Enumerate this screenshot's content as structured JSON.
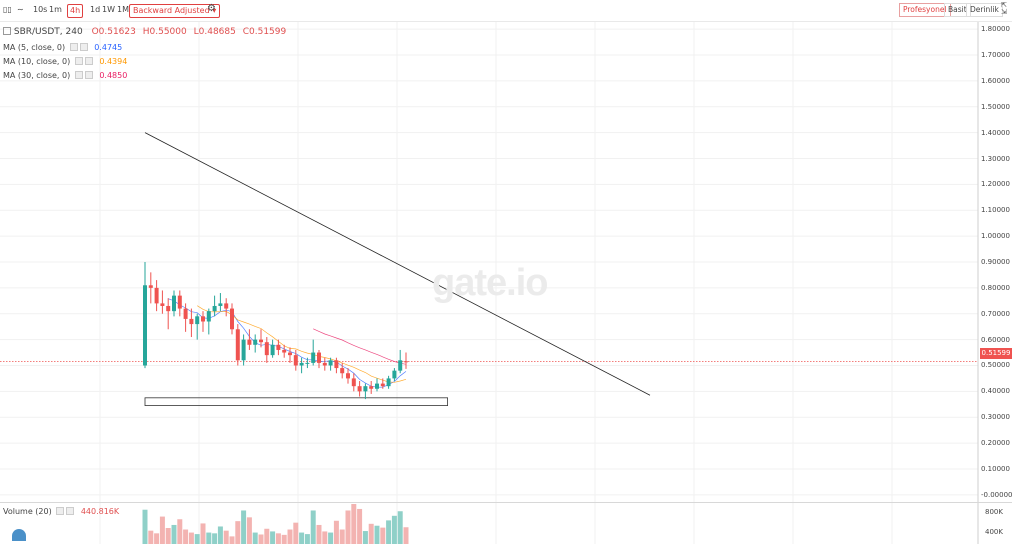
{
  "toolbar": {
    "intervals": [
      "10s",
      "1m",
      "4h",
      "1d",
      "1W",
      "1M"
    ],
    "active_interval": "4h",
    "price_mode": "Backward Adjusted",
    "view_modes": [
      "Profesyonel",
      "Basit",
      "Derinlik"
    ],
    "active_view": "Profesyonel"
  },
  "symbol": {
    "name": "SBR/USDT, 240",
    "open": "O0.51623",
    "high": "H0.55000",
    "low": "L0.48685",
    "close": "C0.51599"
  },
  "indicators": [
    {
      "label": "MA (5, close, 0)",
      "value": "0.4745",
      "color": "#2962ff"
    },
    {
      "label": "MA (10, close, 0)",
      "value": "0.4394",
      "color": "#ff9800"
    },
    {
      "label": "MA (30, close, 0)",
      "value": "0.4850",
      "color": "#e91e63"
    }
  ],
  "volume_legend": {
    "label": "Volume (20)",
    "value": "440.816K"
  },
  "watermark": "gate.io",
  "price_axis": [
    "1.80000",
    "1.70000",
    "1.60000",
    "1.50000",
    "1.40000",
    "1.30000",
    "1.20000",
    "1.10000",
    "1.00000",
    "0.90000",
    "0.80000",
    "0.70000",
    "0.60000",
    "0.50000",
    "0.40000",
    "0.30000",
    "0.20000",
    "0.10000",
    "-0.00000"
  ],
  "last_price": "0.51599",
  "volume_axis": [
    "800K",
    "400K"
  ],
  "colors": {
    "up": "#26a69a",
    "down": "#ef5350",
    "up_vol": "#8fd0c8",
    "down_vol": "#f3b3b1",
    "grid": "#f1f1f1"
  },
  "chart_data": {
    "type": "candlestick",
    "symbol": "SBR/USDT",
    "ylim": [
      -0.02,
      1.82
    ],
    "candles": [
      {
        "o": 0.5,
        "h": 0.9,
        "l": 0.49,
        "c": 0.81
      },
      {
        "o": 0.81,
        "h": 0.86,
        "l": 0.74,
        "c": 0.8
      },
      {
        "o": 0.8,
        "h": 0.83,
        "l": 0.71,
        "c": 0.74
      },
      {
        "o": 0.74,
        "h": 0.79,
        "l": 0.7,
        "c": 0.73
      },
      {
        "o": 0.73,
        "h": 0.76,
        "l": 0.64,
        "c": 0.71
      },
      {
        "o": 0.71,
        "h": 0.79,
        "l": 0.69,
        "c": 0.77
      },
      {
        "o": 0.77,
        "h": 0.79,
        "l": 0.69,
        "c": 0.72
      },
      {
        "o": 0.72,
        "h": 0.74,
        "l": 0.63,
        "c": 0.68
      },
      {
        "o": 0.68,
        "h": 0.72,
        "l": 0.61,
        "c": 0.66
      },
      {
        "o": 0.66,
        "h": 0.7,
        "l": 0.6,
        "c": 0.69
      },
      {
        "o": 0.69,
        "h": 0.71,
        "l": 0.63,
        "c": 0.67
      },
      {
        "o": 0.67,
        "h": 0.72,
        "l": 0.62,
        "c": 0.71
      },
      {
        "o": 0.71,
        "h": 0.77,
        "l": 0.69,
        "c": 0.73
      },
      {
        "o": 0.73,
        "h": 0.78,
        "l": 0.71,
        "c": 0.74
      },
      {
        "o": 0.74,
        "h": 0.76,
        "l": 0.69,
        "c": 0.72
      },
      {
        "o": 0.72,
        "h": 0.74,
        "l": 0.62,
        "c": 0.64
      },
      {
        "o": 0.64,
        "h": 0.66,
        "l": 0.5,
        "c": 0.52
      },
      {
        "o": 0.52,
        "h": 0.62,
        "l": 0.5,
        "c": 0.6
      },
      {
        "o": 0.6,
        "h": 0.64,
        "l": 0.56,
        "c": 0.58
      },
      {
        "o": 0.58,
        "h": 0.62,
        "l": 0.55,
        "c": 0.6
      },
      {
        "o": 0.6,
        "h": 0.64,
        "l": 0.57,
        "c": 0.59
      },
      {
        "o": 0.59,
        "h": 0.61,
        "l": 0.51,
        "c": 0.54
      },
      {
        "o": 0.54,
        "h": 0.6,
        "l": 0.53,
        "c": 0.58
      },
      {
        "o": 0.58,
        "h": 0.6,
        "l": 0.54,
        "c": 0.56
      },
      {
        "o": 0.56,
        "h": 0.58,
        "l": 0.53,
        "c": 0.55
      },
      {
        "o": 0.55,
        "h": 0.57,
        "l": 0.51,
        "c": 0.54
      },
      {
        "o": 0.54,
        "h": 0.56,
        "l": 0.48,
        "c": 0.5
      },
      {
        "o": 0.5,
        "h": 0.53,
        "l": 0.47,
        "c": 0.51
      },
      {
        "o": 0.51,
        "h": 0.53,
        "l": 0.49,
        "c": 0.51
      },
      {
        "o": 0.51,
        "h": 0.6,
        "l": 0.5,
        "c": 0.55
      },
      {
        "o": 0.55,
        "h": 0.56,
        "l": 0.49,
        "c": 0.51
      },
      {
        "o": 0.51,
        "h": 0.53,
        "l": 0.48,
        "c": 0.5
      },
      {
        "o": 0.5,
        "h": 0.53,
        "l": 0.48,
        "c": 0.52
      },
      {
        "o": 0.52,
        "h": 0.53,
        "l": 0.47,
        "c": 0.49
      },
      {
        "o": 0.49,
        "h": 0.51,
        "l": 0.45,
        "c": 0.47
      },
      {
        "o": 0.47,
        "h": 0.49,
        "l": 0.43,
        "c": 0.45
      },
      {
        "o": 0.45,
        "h": 0.47,
        "l": 0.4,
        "c": 0.42
      },
      {
        "o": 0.42,
        "h": 0.44,
        "l": 0.38,
        "c": 0.4
      },
      {
        "o": 0.4,
        "h": 0.43,
        "l": 0.37,
        "c": 0.42
      },
      {
        "o": 0.42,
        "h": 0.44,
        "l": 0.39,
        "c": 0.41
      },
      {
        "o": 0.41,
        "h": 0.45,
        "l": 0.4,
        "c": 0.43
      },
      {
        "o": 0.43,
        "h": 0.45,
        "l": 0.41,
        "c": 0.42
      },
      {
        "o": 0.42,
        "h": 0.46,
        "l": 0.41,
        "c": 0.45
      },
      {
        "o": 0.45,
        "h": 0.49,
        "l": 0.44,
        "c": 0.48
      },
      {
        "o": 0.48,
        "h": 0.56,
        "l": 0.47,
        "c": 0.52
      },
      {
        "o": 0.51623,
        "h": 0.55,
        "l": 0.48685,
        "c": 0.51599
      }
    ],
    "volumes": [
      900,
      350,
      280,
      720,
      420,
      500,
      650,
      380,
      300,
      260,
      540,
      300,
      280,
      460,
      350,
      200,
      600,
      880,
      700,
      300,
      250,
      400,
      330,
      280,
      240,
      380,
      560,
      300,
      260,
      880,
      500,
      330,
      300,
      610,
      380,
      880,
      1050,
      920,
      340,
      530,
      480,
      430,
      620,
      740,
      860,
      440
    ],
    "annotations": {
      "trendline": {
        "from_index": 0,
        "from_price": 1.4,
        "to_index": 47,
        "to_price": 0.385
      },
      "support_box": {
        "from_index": 0,
        "to_index": 47,
        "top": 0.375,
        "bottom": 0.345
      },
      "last_price_line": 0.51599
    }
  }
}
